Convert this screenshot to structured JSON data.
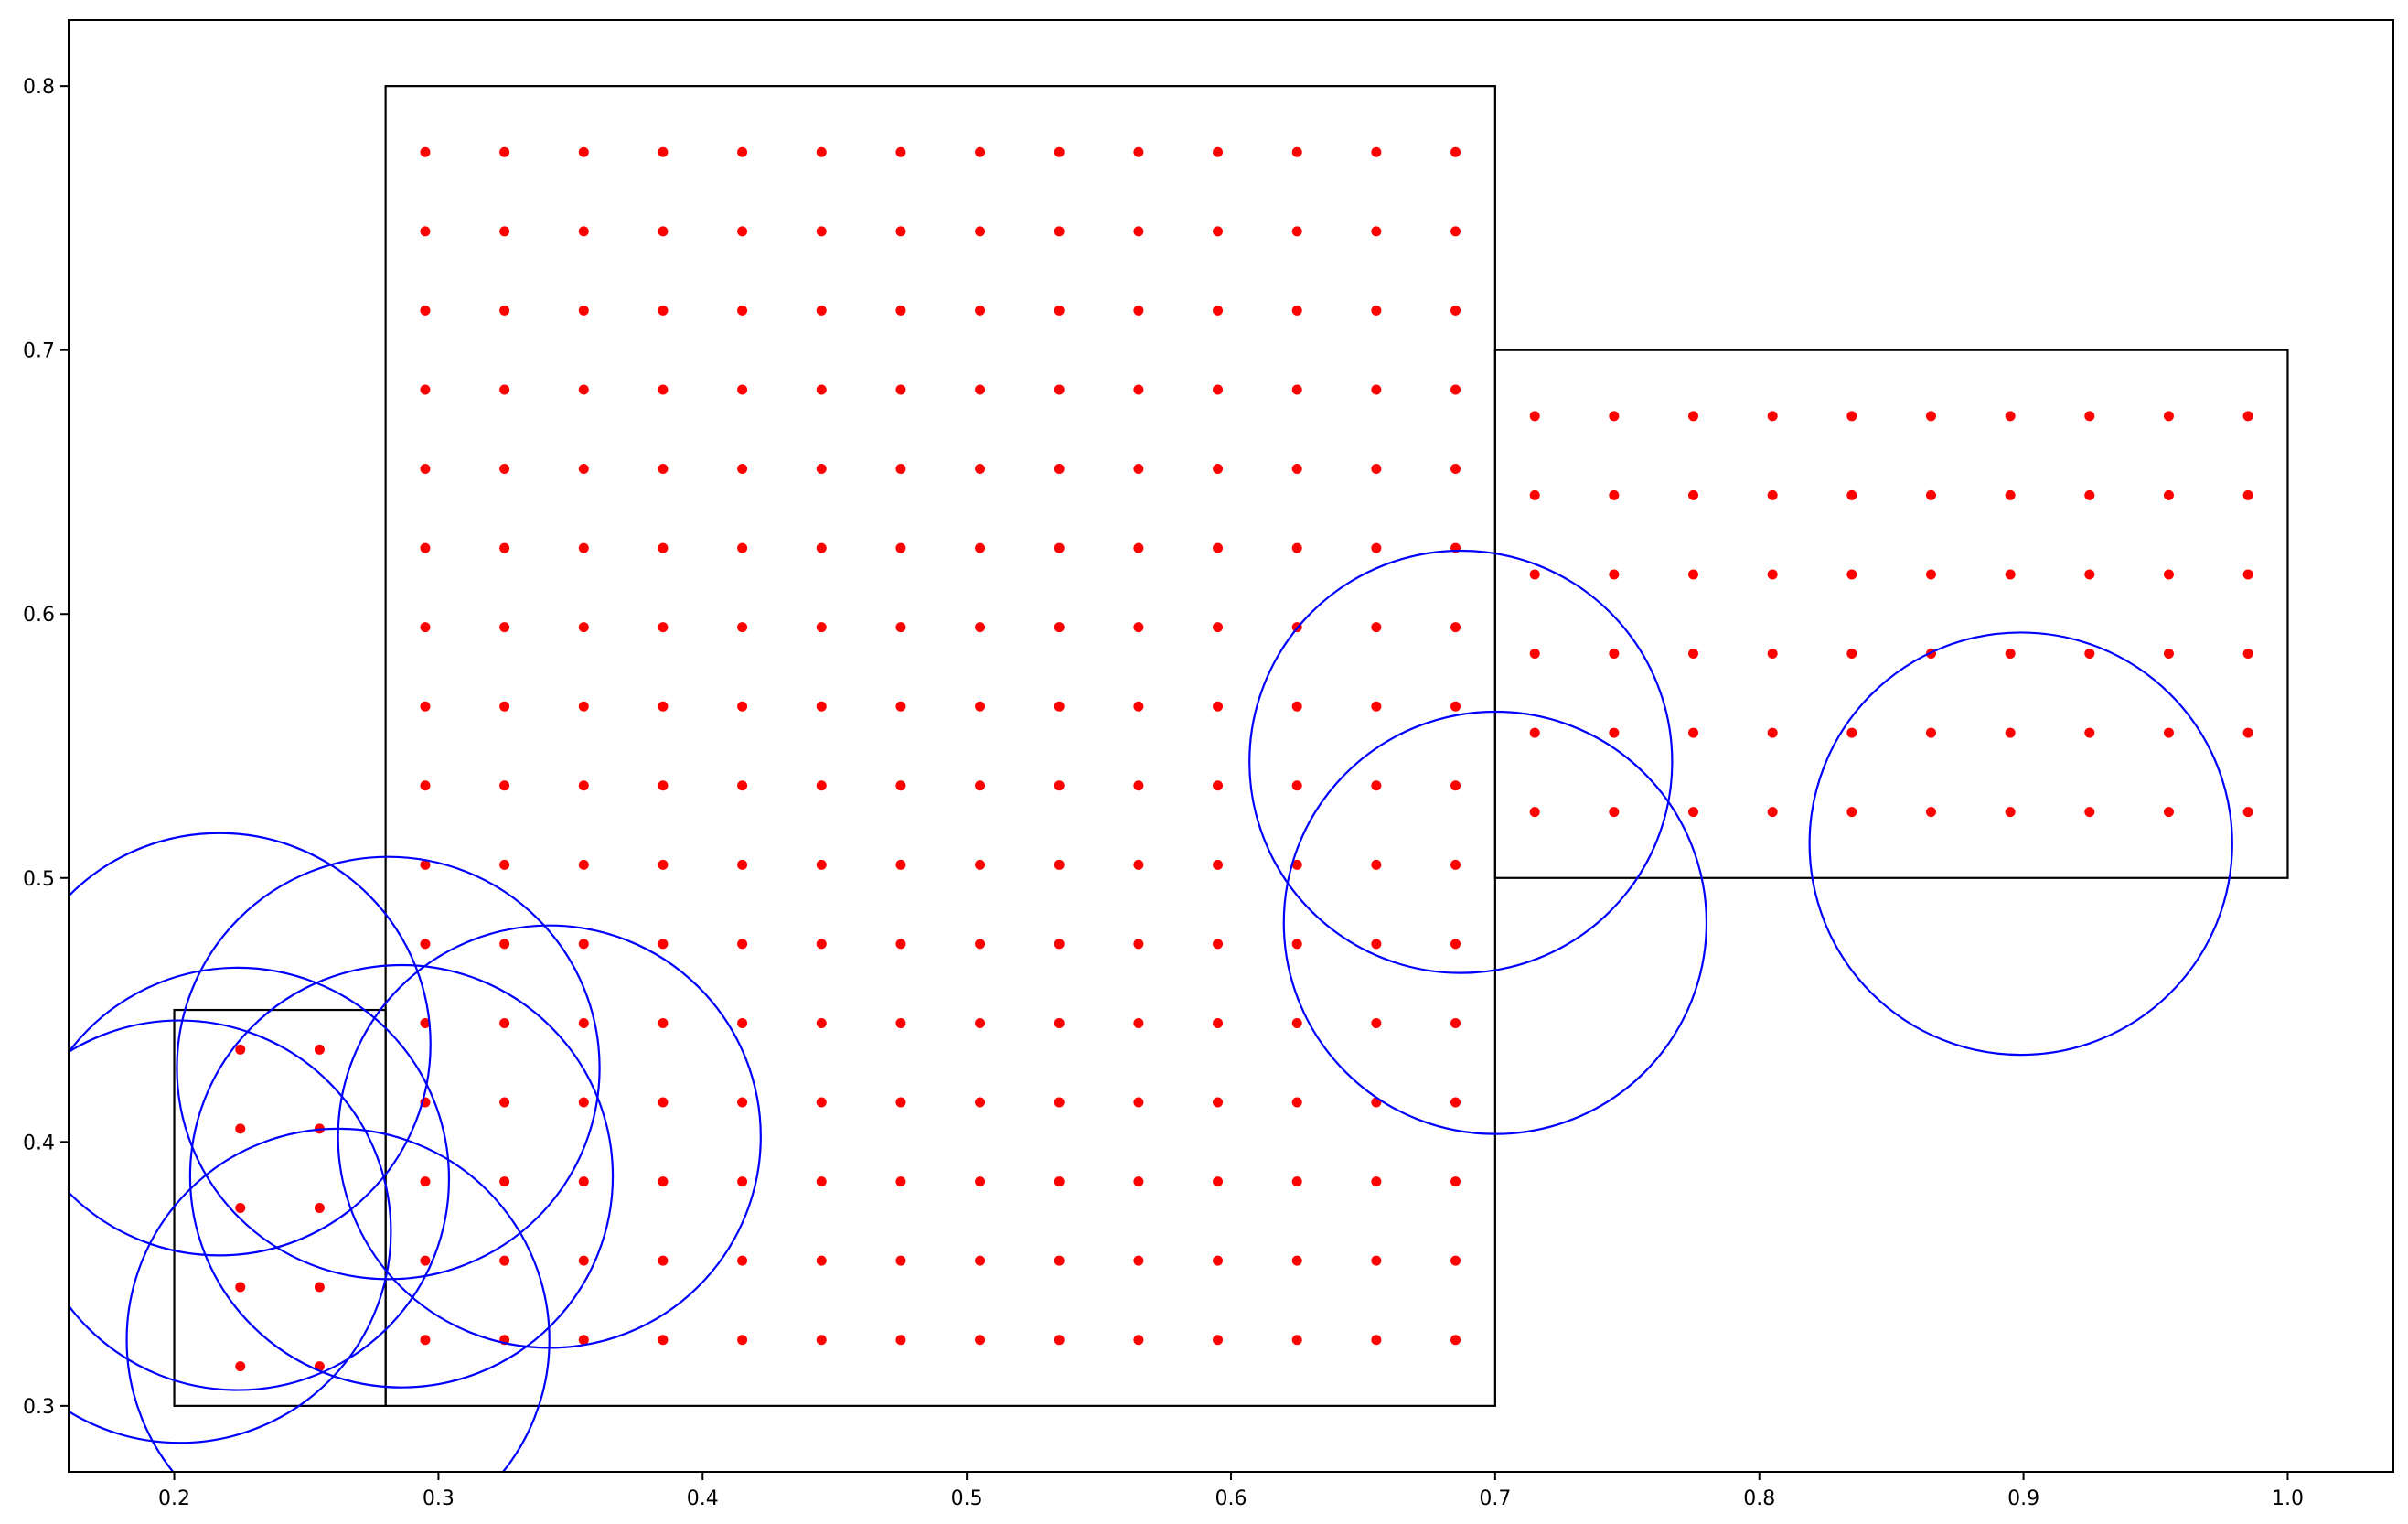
{
  "chart_data": {
    "type": "scatter",
    "title": "",
    "xlabel": "",
    "ylabel": "",
    "xlim": [
      0.16,
      1.04
    ],
    "ylim": [
      0.275,
      0.825
    ],
    "grid": false,
    "x_ticks": [
      0.2,
      0.3,
      0.4,
      0.5,
      0.6,
      0.7,
      0.8,
      0.9,
      1.0
    ],
    "x_tick_labels": [
      "0.2",
      "0.3",
      "0.4",
      "0.5",
      "0.6",
      "0.7",
      "0.8",
      "0.9",
      "1.0"
    ],
    "y_ticks": [
      0.3,
      0.4,
      0.5,
      0.6,
      0.7,
      0.8
    ],
    "y_tick_labels": [
      "0.3",
      "0.4",
      "0.5",
      "0.6",
      "0.7",
      "0.8"
    ],
    "colors": {
      "points": "#ff0000",
      "circles": "#0000ff",
      "rectangles": "#000000",
      "axes": "#000000"
    },
    "rectangles": [
      {
        "x0": 0.28,
        "y0": 0.3,
        "x1": 0.7,
        "y1": 0.8
      },
      {
        "x0": 0.7,
        "y0": 0.5,
        "x1": 1.0,
        "y1": 0.7
      },
      {
        "x0": 0.2,
        "y0": 0.3,
        "x1": 0.28,
        "y1": 0.45
      }
    ],
    "point_grids": [
      {
        "x_start": 0.295,
        "x_step": 0.03,
        "x_count": 14,
        "y_start": 0.325,
        "y_step": 0.03,
        "y_count": 16
      },
      {
        "x_start": 0.715,
        "x_step": 0.03,
        "x_count": 10,
        "y_start": 0.525,
        "y_step": 0.03,
        "y_count": 6
      },
      {
        "x_start": 0.225,
        "x_step": 0.03,
        "x_count": 2,
        "y_start": 0.315,
        "y_step": 0.03,
        "y_count": 5
      }
    ],
    "circles": [
      {
        "cx": 0.217,
        "cy": 0.437,
        "r": 0.08
      },
      {
        "cx": 0.281,
        "cy": 0.428,
        "r": 0.08
      },
      {
        "cx": 0.224,
        "cy": 0.386,
        "r": 0.08
      },
      {
        "cx": 0.286,
        "cy": 0.387,
        "r": 0.08
      },
      {
        "cx": 0.342,
        "cy": 0.402,
        "r": 0.08
      },
      {
        "cx": 0.202,
        "cy": 0.366,
        "r": 0.08
      },
      {
        "cx": 0.262,
        "cy": 0.325,
        "r": 0.08
      },
      {
        "cx": 0.687,
        "cy": 0.544,
        "r": 0.08
      },
      {
        "cx": 0.7,
        "cy": 0.483,
        "r": 0.08
      },
      {
        "cx": 0.899,
        "cy": 0.513,
        "r": 0.08
      }
    ]
  }
}
